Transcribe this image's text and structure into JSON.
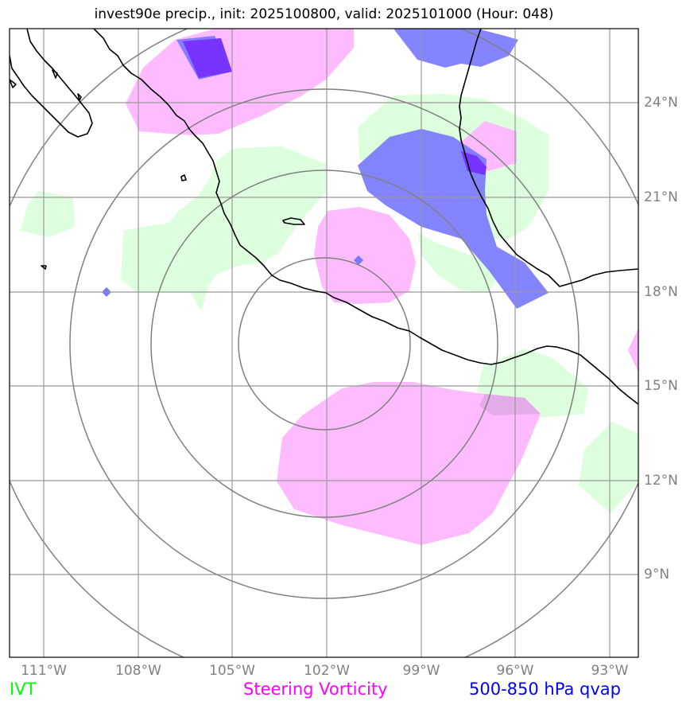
{
  "title": "invest90e precip., init: 2025100800, valid: 2025101000 (Hour: 048)",
  "longitude_labels": [
    "111°W",
    "108°W",
    "105°W",
    "102°W",
    "99°W",
    "96°W",
    "93°W"
  ],
  "latitude_labels": [
    "24°N",
    "21°N",
    "18°N",
    "15°N",
    "12°N",
    "9°N"
  ],
  "legend": {
    "ivt": {
      "label": "IVT",
      "color": "#00ff00"
    },
    "vorticity": {
      "label": "Steering Vorticity",
      "color": "#ff00ff"
    },
    "qvap": {
      "label": "500-850 hPa qvap",
      "color": "#0000ff"
    }
  },
  "colors": {
    "ivt_fill": "#ddffdd",
    "vorticity_fill": "#ffbbff",
    "qvap_fill": "#7777ff",
    "qvap_strong": "#7733ff",
    "grid": "#999999",
    "range_rings": "#808080",
    "coastline": "#000000"
  }
}
